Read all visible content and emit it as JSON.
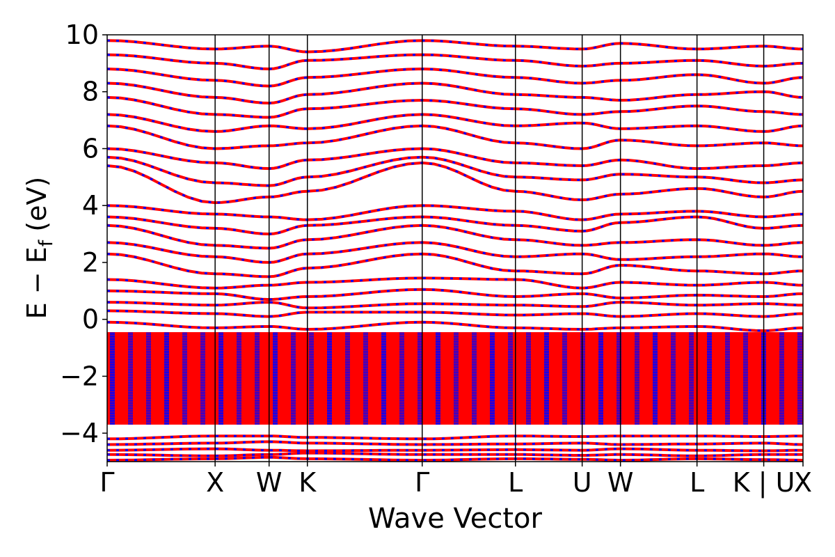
{
  "chart_data": {
    "type": "line",
    "title": "",
    "xlabel": "Wave Vector",
    "ylabel": "E − E",
    "ylabel_subscript": "f",
    "ylabel_unit": " (eV)",
    "ylim": [
      -5,
      10
    ],
    "yticks": [
      {
        "value": -4,
        "label": "−4"
      },
      {
        "value": -2,
        "label": "−2"
      },
      {
        "value": 0,
        "label": "0"
      },
      {
        "value": 2,
        "label": "2"
      },
      {
        "value": 4,
        "label": "4"
      },
      {
        "value": 6,
        "label": "6"
      },
      {
        "value": 8,
        "label": "8"
      },
      {
        "value": 10,
        "label": "10"
      }
    ],
    "xlim": [
      0,
      7.09
    ],
    "kpoints": [
      {
        "label": "Γ",
        "x": 0.0
      },
      {
        "label": "X",
        "x": 1.1
      },
      {
        "label": "W",
        "x": 1.65
      },
      {
        "label": "K",
        "x": 2.04
      },
      {
        "label": "Γ",
        "x": 3.21
      },
      {
        "label": "L",
        "x": 4.16
      },
      {
        "label": "U",
        "x": 4.84
      },
      {
        "label": "W",
        "x": 5.23
      },
      {
        "label": "L",
        "x": 6.01
      },
      {
        "label": "K | U",
        "x": 6.69
      },
      {
        "label": "X",
        "x": 7.09
      }
    ],
    "grid": false,
    "legend": "none",
    "series": [
      {
        "color": "#ff0000",
        "style": "solid",
        "bands": [
          [
            -4.95,
            -4.9,
            -4.85,
            -4.9,
            -4.95,
            -4.9,
            -4.92,
            -4.95,
            -4.9,
            -4.93,
            -4.95
          ],
          [
            -4.75,
            -4.8,
            -4.75,
            -4.7,
            -4.75,
            -4.75,
            -4.78,
            -4.75,
            -4.8,
            -4.75,
            -4.75
          ],
          [
            -4.6,
            -4.55,
            -4.6,
            -4.62,
            -4.6,
            -4.58,
            -4.6,
            -4.55,
            -4.6,
            -4.62,
            -4.6
          ],
          [
            -4.4,
            -4.35,
            -4.3,
            -4.35,
            -4.4,
            -4.38,
            -4.35,
            -4.4,
            -4.38,
            -4.35,
            -4.4
          ],
          [
            -4.2,
            -4.1,
            -4.1,
            -4.15,
            -4.2,
            -4.1,
            -4.12,
            -4.1,
            -4.1,
            -4.12,
            -4.1
          ],
          [
            -0.1,
            -0.3,
            -0.25,
            -0.35,
            -0.1,
            -0.3,
            -0.35,
            -0.3,
            -0.25,
            -0.4,
            -0.3
          ],
          [
            0.3,
            0.2,
            0.1,
            0.25,
            0.25,
            0.15,
            0.2,
            0.1,
            0.2,
            0.1,
            0.2
          ],
          [
            0.6,
            0.5,
            0.6,
            0.4,
            0.55,
            0.5,
            0.45,
            0.6,
            0.5,
            0.55,
            0.5
          ],
          [
            1.0,
            0.9,
            0.7,
            0.8,
            1.05,
            0.8,
            0.9,
            0.75,
            0.85,
            0.8,
            0.9
          ],
          [
            1.4,
            1.1,
            1.2,
            1.3,
            1.45,
            1.4,
            1.1,
            1.3,
            1.2,
            1.3,
            1.2
          ],
          [
            2.3,
            1.6,
            1.5,
            1.8,
            2.3,
            1.7,
            1.6,
            1.9,
            1.7,
            1.6,
            1.7
          ],
          [
            2.7,
            2.2,
            2.0,
            2.3,
            2.7,
            2.2,
            2.3,
            2.1,
            2.2,
            2.3,
            2.2
          ],
          [
            3.3,
            2.6,
            2.5,
            2.8,
            3.3,
            2.8,
            2.6,
            2.7,
            2.8,
            2.6,
            2.7
          ],
          [
            3.6,
            3.2,
            3.0,
            3.3,
            3.6,
            3.3,
            3.1,
            3.4,
            3.6,
            3.2,
            3.3
          ],
          [
            4.0,
            3.7,
            3.6,
            3.5,
            4.0,
            3.8,
            3.5,
            3.7,
            3.8,
            3.6,
            3.7
          ],
          [
            5.4,
            4.1,
            4.3,
            4.5,
            5.5,
            4.5,
            4.2,
            4.4,
            4.6,
            4.3,
            4.5
          ],
          [
            5.7,
            4.8,
            4.7,
            5.0,
            5.7,
            5.0,
            4.9,
            5.1,
            5.0,
            4.8,
            4.9
          ],
          [
            6.0,
            5.5,
            5.3,
            5.6,
            6.0,
            5.5,
            5.4,
            5.6,
            5.3,
            5.4,
            5.5
          ],
          [
            6.8,
            6.0,
            6.1,
            6.2,
            6.8,
            6.2,
            6.0,
            6.3,
            6.1,
            6.2,
            6.1
          ],
          [
            7.2,
            6.6,
            6.8,
            6.7,
            7.2,
            6.8,
            6.9,
            6.7,
            6.8,
            6.6,
            6.8
          ],
          [
            7.8,
            7.2,
            7.1,
            7.4,
            7.7,
            7.4,
            7.2,
            7.3,
            7.5,
            7.3,
            7.2
          ],
          [
            8.3,
            7.8,
            7.6,
            7.9,
            8.3,
            7.9,
            7.8,
            7.7,
            7.9,
            8.0,
            7.8
          ],
          [
            8.8,
            8.4,
            8.2,
            8.5,
            8.8,
            8.5,
            8.3,
            8.4,
            8.6,
            8.3,
            8.5
          ],
          [
            9.3,
            9.0,
            8.8,
            9.1,
            9.3,
            9.1,
            8.9,
            9.0,
            9.1,
            8.9,
            9.0
          ],
          [
            9.8,
            9.5,
            9.6,
            9.4,
            9.8,
            9.6,
            9.5,
            9.7,
            9.5,
            9.6,
            9.5
          ]
        ],
        "dense_region": [
          -3.7,
          -0.45
        ]
      },
      {
        "color": "#0000ff",
        "style": "dashed",
        "same_bands_as_series": 0
      }
    ]
  }
}
